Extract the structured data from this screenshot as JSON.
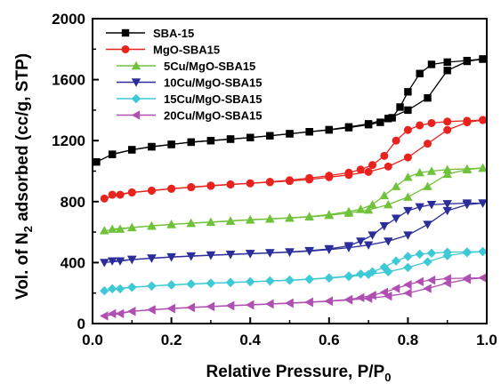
{
  "chart_data": {
    "type": "scatter",
    "xlabel": "Relative Pressure, P/P",
    "xlabel_sub": "0",
    "ylabel_pre": "Vol. of N",
    "ylabel_sub": "2",
    "ylabel_post": " adsorbed (cc/g, STP)",
    "xlim": [
      0.0,
      1.0
    ],
    "ylim": [
      0,
      2000
    ],
    "xticks": [
      "0.0",
      "0.2",
      "0.4",
      "0.6",
      "0.8",
      "1.0"
    ],
    "yticks": [
      "0",
      "400",
      "800",
      "1200",
      "1600",
      "2000"
    ],
    "grid": false,
    "legend_position": "top-left",
    "series": [
      {
        "name": "SBA-15",
        "color": "#000000",
        "marker": "square",
        "adsorption": {
          "x": [
            0.01,
            0.05,
            0.1,
            0.15,
            0.2,
            0.25,
            0.3,
            0.35,
            0.4,
            0.45,
            0.5,
            0.55,
            0.6,
            0.65,
            0.7,
            0.75,
            0.8,
            0.85,
            0.9,
            0.95,
            0.99
          ],
          "y": [
            1060,
            1110,
            1140,
            1160,
            1175,
            1190,
            1200,
            1210,
            1220,
            1232,
            1245,
            1258,
            1272,
            1290,
            1310,
            1345,
            1400,
            1480,
            1660,
            1720,
            1735
          ]
        },
        "desorption": {
          "x": [
            0.99,
            0.95,
            0.9,
            0.86,
            0.83,
            0.8,
            0.78,
            0.76,
            0.73,
            0.7,
            0.65,
            0.6,
            0.55,
            0.5,
            0.45,
            0.4,
            0.35,
            0.3,
            0.25,
            0.2,
            0.15,
            0.1,
            0.05
          ],
          "y": [
            1735,
            1725,
            1715,
            1700,
            1640,
            1520,
            1420,
            1350,
            1320,
            1305,
            1285,
            1270,
            1258,
            1245,
            1232,
            1220,
            1210,
            1200,
            1190,
            1175,
            1160,
            1140,
            1110
          ]
        }
      },
      {
        "name": "MgO-SBA15",
        "color": "#e8231e",
        "marker": "circle",
        "adsorption": {
          "x": [
            0.03,
            0.07,
            0.1,
            0.15,
            0.2,
            0.25,
            0.3,
            0.35,
            0.4,
            0.45,
            0.5,
            0.55,
            0.6,
            0.65,
            0.7,
            0.75,
            0.8,
            0.85,
            0.9,
            0.95,
            0.99
          ],
          "y": [
            820,
            845,
            860,
            872,
            885,
            895,
            905,
            913,
            920,
            927,
            935,
            945,
            960,
            975,
            995,
            1030,
            1090,
            1180,
            1270,
            1320,
            1335
          ]
        },
        "desorption": {
          "x": [
            0.99,
            0.95,
            0.9,
            0.86,
            0.83,
            0.8,
            0.77,
            0.74,
            0.71,
            0.68,
            0.65,
            0.6,
            0.55,
            0.5,
            0.45,
            0.4,
            0.35,
            0.3,
            0.25,
            0.2,
            0.15,
            0.1,
            0.05
          ],
          "y": [
            1335,
            1330,
            1325,
            1315,
            1300,
            1270,
            1200,
            1100,
            1040,
            1010,
            990,
            970,
            955,
            940,
            930,
            920,
            912,
            903,
            894,
            884,
            872,
            860,
            845
          ]
        }
      },
      {
        "name": "5Cu/MgO-SBA15",
        "color": "#6fc23a",
        "marker": "triangle-up",
        "adsorption": {
          "x": [
            0.03,
            0.07,
            0.1,
            0.15,
            0.2,
            0.25,
            0.3,
            0.35,
            0.4,
            0.45,
            0.5,
            0.55,
            0.6,
            0.65,
            0.7,
            0.75,
            0.8,
            0.85,
            0.9,
            0.95,
            0.99
          ],
          "y": [
            610,
            620,
            630,
            640,
            650,
            658,
            665,
            672,
            680,
            686,
            692,
            700,
            710,
            725,
            745,
            780,
            830,
            900,
            980,
            1010,
            1020
          ]
        },
        "desorption": {
          "x": [
            0.99,
            0.95,
            0.9,
            0.86,
            0.83,
            0.8,
            0.77,
            0.74,
            0.71,
            0.68,
            0.65,
            0.6,
            0.55,
            0.5,
            0.45,
            0.4,
            0.35,
            0.3,
            0.25,
            0.2,
            0.15,
            0.1,
            0.05
          ],
          "y": [
            1020,
            1015,
            1010,
            1000,
            990,
            960,
            900,
            840,
            780,
            750,
            735,
            715,
            702,
            694,
            687,
            681,
            674,
            666,
            659,
            651,
            641,
            630,
            620
          ]
        }
      },
      {
        "name": "10Cu/MgO-SBA15",
        "color": "#2b2e9a",
        "marker": "triangle-down",
        "adsorption": {
          "x": [
            0.03,
            0.07,
            0.1,
            0.15,
            0.2,
            0.25,
            0.3,
            0.35,
            0.4,
            0.45,
            0.5,
            0.55,
            0.6,
            0.65,
            0.7,
            0.75,
            0.8,
            0.85,
            0.9,
            0.95,
            0.99
          ],
          "y": [
            400,
            410,
            420,
            428,
            436,
            442,
            448,
            453,
            458,
            463,
            468,
            475,
            485,
            498,
            515,
            540,
            580,
            650,
            740,
            780,
            790
          ]
        },
        "desorption": {
          "x": [
            0.99,
            0.95,
            0.9,
            0.86,
            0.83,
            0.8,
            0.77,
            0.74,
            0.71,
            0.68,
            0.65,
            0.6,
            0.55,
            0.5,
            0.45,
            0.4,
            0.35,
            0.3,
            0.25,
            0.2,
            0.15,
            0.1,
            0.05
          ],
          "y": [
            790,
            790,
            785,
            780,
            765,
            740,
            690,
            640,
            580,
            540,
            510,
            490,
            478,
            470,
            464,
            459,
            454,
            449,
            443,
            437,
            429,
            420,
            410
          ]
        }
      },
      {
        "name": "15Cu/MgO-SBA15",
        "color": "#3ec9d6",
        "marker": "diamond",
        "adsorption": {
          "x": [
            0.03,
            0.07,
            0.1,
            0.15,
            0.2,
            0.25,
            0.3,
            0.35,
            0.4,
            0.45,
            0.5,
            0.55,
            0.6,
            0.65,
            0.7,
            0.75,
            0.8,
            0.85,
            0.9,
            0.95,
            0.99
          ],
          "y": [
            215,
            228,
            238,
            246,
            253,
            259,
            264,
            269,
            274,
            279,
            284,
            290,
            298,
            308,
            322,
            340,
            368,
            405,
            445,
            465,
            472
          ]
        },
        "desorption": {
          "x": [
            0.99,
            0.95,
            0.9,
            0.86,
            0.83,
            0.8,
            0.77,
            0.74,
            0.71,
            0.68,
            0.65,
            0.6,
            0.55,
            0.5,
            0.45,
            0.4,
            0.35,
            0.3,
            0.25,
            0.2,
            0.15,
            0.1,
            0.05
          ],
          "y": [
            472,
            470,
            468,
            462,
            455,
            440,
            410,
            370,
            340,
            325,
            312,
            300,
            292,
            285,
            280,
            275,
            270,
            265,
            260,
            254,
            247,
            238,
            228
          ]
        }
      },
      {
        "name": "20Cu/MgO-SBA15",
        "color": "#b04fb2",
        "marker": "triangle-left",
        "adsorption": {
          "x": [
            0.03,
            0.07,
            0.1,
            0.15,
            0.2,
            0.25,
            0.3,
            0.35,
            0.4,
            0.45,
            0.5,
            0.55,
            0.6,
            0.65,
            0.7,
            0.75,
            0.8,
            0.85,
            0.9,
            0.95,
            0.99
          ],
          "y": [
            50,
            65,
            80,
            90,
            98,
            105,
            111,
            117,
            122,
            128,
            133,
            139,
            146,
            155,
            165,
            180,
            200,
            230,
            265,
            290,
            300
          ]
        },
        "desorption": {
          "x": [
            0.99,
            0.95,
            0.9,
            0.86,
            0.83,
            0.8,
            0.77,
            0.74,
            0.71,
            0.68,
            0.65,
            0.6,
            0.55,
            0.5,
            0.45,
            0.4,
            0.35,
            0.3,
            0.25,
            0.2,
            0.15,
            0.1,
            0.05
          ],
          "y": [
            300,
            298,
            295,
            285,
            275,
            255,
            230,
            205,
            185,
            170,
            158,
            148,
            141,
            135,
            129,
            123,
            118,
            112,
            106,
            99,
            91,
            80,
            65
          ]
        }
      }
    ]
  }
}
